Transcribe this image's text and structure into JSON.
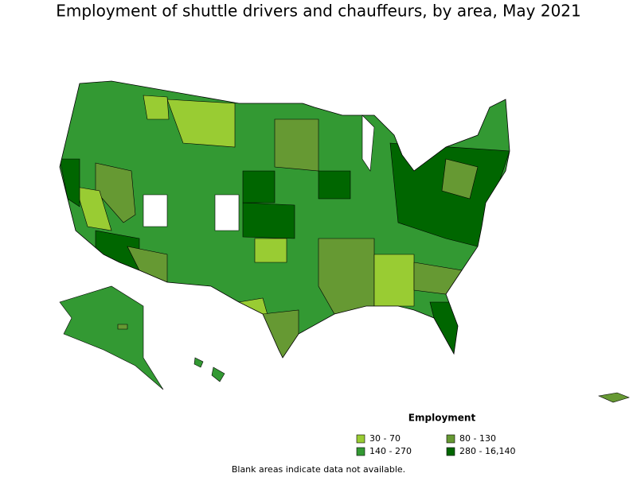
{
  "title": "Employment of shuttle drivers and chauffeurs, by area, May 2021",
  "legend": {
    "title": "Employment",
    "items": [
      {
        "label": "30 - 70",
        "color": "#99cc33"
      },
      {
        "label": "80 - 130",
        "color": "#669933"
      },
      {
        "label": "140 - 270",
        "color": "#339933"
      },
      {
        "label": "280 - 16,140",
        "color": "#006600"
      }
    ]
  },
  "note": "Blank areas indicate data not available."
}
